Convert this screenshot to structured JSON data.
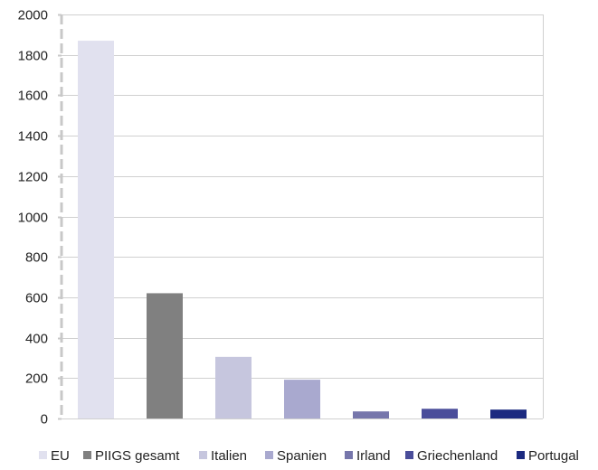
{
  "chart_data": {
    "type": "bar",
    "categories": [
      "EU",
      "PIIGS gesamt",
      "Italien",
      "Spanien",
      "Irland",
      "Griechenland",
      "Portugal"
    ],
    "values": [
      1870,
      620,
      305,
      192,
      35,
      48,
      44
    ],
    "colors": [
      "#e1e1ef",
      "#808080",
      "#c6c6de",
      "#a9a9cf",
      "#7676ab",
      "#4a4d9a",
      "#1c2a80"
    ],
    "title": "",
    "xlabel": "",
    "ylabel": "",
    "ylim": [
      0,
      2000
    ],
    "yticks": [
      0,
      200,
      400,
      600,
      800,
      1000,
      1200,
      1400,
      1600,
      1800,
      2000
    ],
    "grid": true,
    "legend_position": "bottom"
  }
}
